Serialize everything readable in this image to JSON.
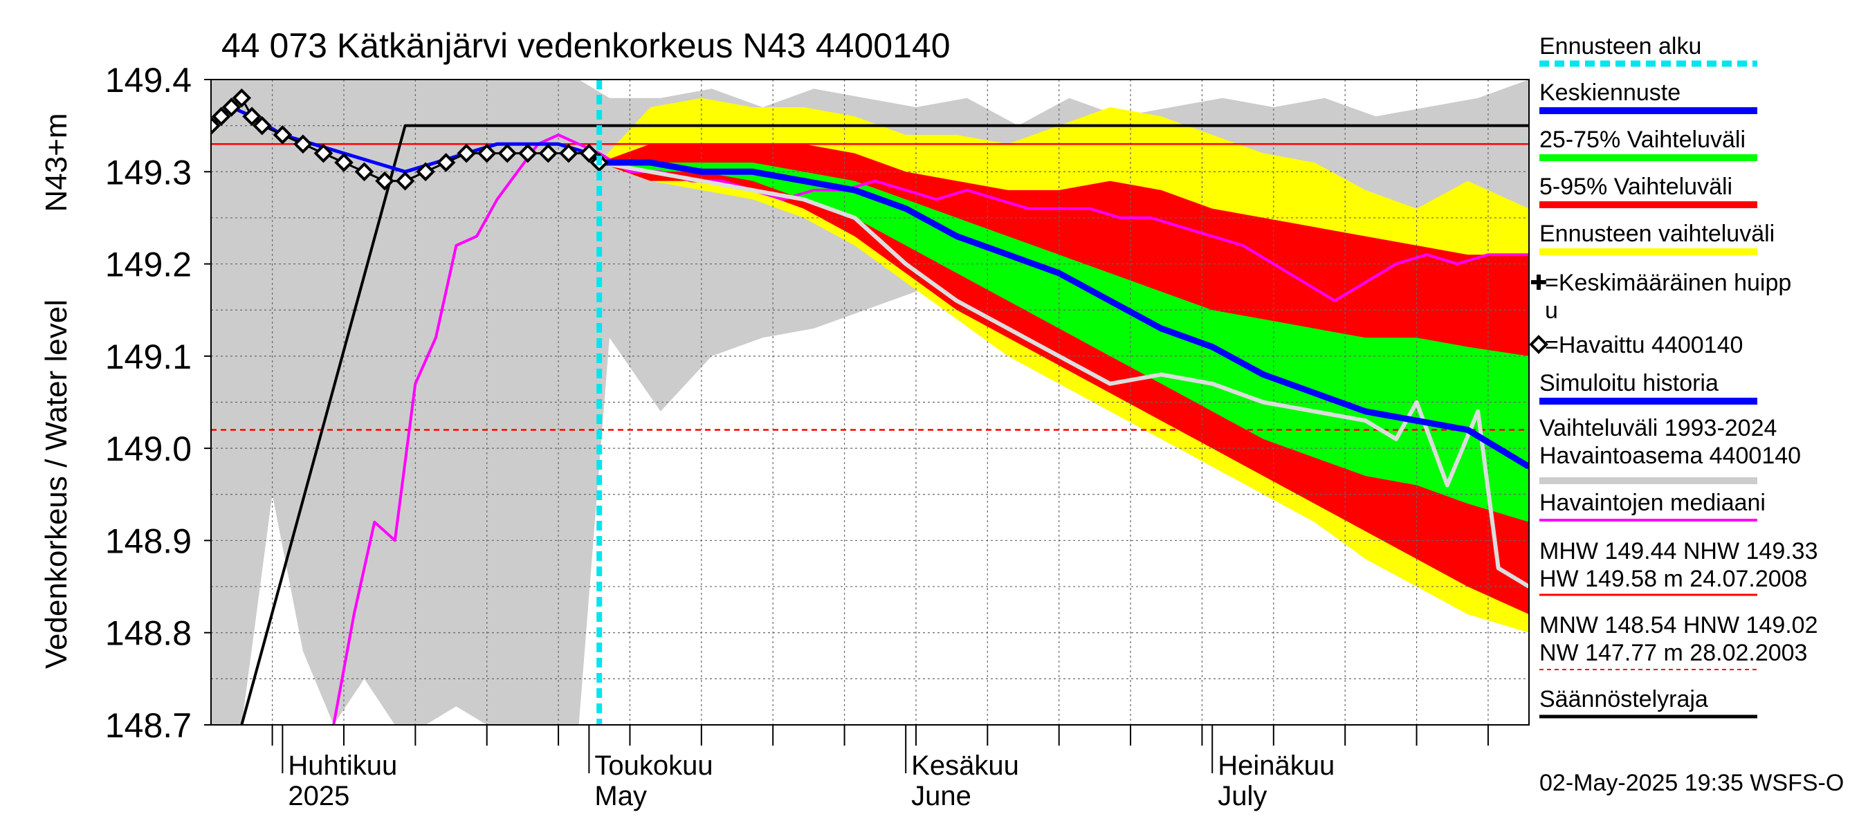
{
  "chart_data": {
    "type": "area",
    "title": "44 073 Kätkänjärvi vedenkorkeus N43 4400140",
    "ylabel": "Vedenkorkeus / Water level",
    "yunit": "N43+m",
    "ylim": [
      148.7,
      149.4
    ],
    "y_ticks": [
      "149.4",
      "149.3",
      "149.2",
      "149.1",
      "149.0",
      "148.9",
      "148.8",
      "148.7"
    ],
    "x_range": [
      "2025-03-25",
      "2025-08-01"
    ],
    "x_month_labels": [
      {
        "date": "2025-04-01",
        "line1": "Huhtikuu",
        "line2": "2025"
      },
      {
        "date": "2025-05-01",
        "line1": "Toukokuu",
        "line2": "May"
      },
      {
        "date": "2025-06-01",
        "line1": "Kesäkuu",
        "line2": "June"
      },
      {
        "date": "2025-07-01",
        "line1": "Heinäkuu",
        "line2": "July"
      }
    ],
    "forecast_start": "2025-05-02",
    "grid": true,
    "legend_placement": "right",
    "timestamp": "02-May-2025 19:35 WSFS-O",
    "reference_lines": [
      {
        "name": "NHW",
        "value": 149.33,
        "style": "solid",
        "color": "#ff0000"
      },
      {
        "name": "HNW",
        "value": 149.02,
        "style": "dashed",
        "color": "#ff0000"
      },
      {
        "name": "Säännöstelyraja",
        "points": [
          [
            "2025-03-28",
            148.7
          ],
          [
            "2025-04-13",
            149.35
          ],
          [
            "2025-08-01",
            149.35
          ]
        ],
        "color": "#000000"
      }
    ],
    "legend": [
      {
        "label": "Ennusteen alku",
        "color": "#00e5ee",
        "style": "dashed"
      },
      {
        "label": "Keskiennuste",
        "color": "#0000ff",
        "style": "line"
      },
      {
        "label": "25-75% Vaihteluväli",
        "color": "#00ff00",
        "style": "line"
      },
      {
        "label": "5-95% Vaihteluväli",
        "color": "#ff0000",
        "style": "line"
      },
      {
        "label": "Ennusteen vaihteluväli",
        "color": "#ffff00",
        "style": "line"
      },
      {
        "label": "=Keskimääräinen huipp u",
        "color": "#000000",
        "style": "plus"
      },
      {
        "label": "=Havaittu 4400140",
        "color": "#000000",
        "style": "diamond"
      },
      {
        "label": "Simuloitu historia",
        "color": "#0000ff",
        "style": "line"
      },
      {
        "label": "Vaihteluväli 1993-2024 Havaintoasema 4400140",
        "color": "#cccccc",
        "style": "line"
      },
      {
        "label": "Havaintojen mediaani",
        "color": "#ff00ff",
        "style": "line"
      },
      {
        "label": "MHW 149.44 NHW 149.33 HW 149.58 m 24.07.2008",
        "color": "#ff0000",
        "style": "thin"
      },
      {
        "label": "MNW 148.54 HNW 149.02 NW 147.77 m 28.02.2003",
        "color": "#ff0000",
        "style": "dashed-thin"
      },
      {
        "label": "Säännöstelyraja",
        "color": "#000000",
        "style": "line"
      }
    ],
    "history_range_1993_2024": {
      "x": [
        "2025-03-25",
        "2025-03-28",
        "2025-03-31",
        "2025-04-03",
        "2025-04-06",
        "2025-04-09",
        "2025-04-12",
        "2025-04-15",
        "2025-04-18",
        "2025-04-21",
        "2025-04-24",
        "2025-04-27",
        "2025-04-30",
        "2025-05-03",
        "2025-05-08",
        "2025-05-13",
        "2025-05-18",
        "2025-05-23",
        "2025-05-28",
        "2025-06-02",
        "2025-06-07",
        "2025-06-12",
        "2025-06-17",
        "2025-06-22",
        "2025-06-27",
        "2025-07-02",
        "2025-07-07",
        "2025-07-12",
        "2025-07-17",
        "2025-07-22",
        "2025-07-27",
        "2025-08-01"
      ],
      "upper": [
        149.4,
        149.4,
        149.4,
        149.4,
        149.4,
        149.4,
        149.4,
        149.4,
        149.4,
        149.4,
        149.4,
        149.4,
        149.4,
        149.38,
        149.38,
        149.39,
        149.37,
        149.39,
        149.38,
        149.37,
        149.38,
        149.35,
        149.38,
        149.36,
        149.37,
        149.38,
        149.37,
        149.38,
        149.36,
        149.37,
        149.38,
        149.4
      ],
      "lower": [
        148.7,
        148.7,
        148.95,
        148.78,
        148.7,
        148.75,
        148.7,
        148.7,
        148.72,
        148.7,
        148.7,
        148.7,
        148.7,
        149.12,
        149.04,
        149.1,
        149.12,
        149.13,
        149.15,
        149.17,
        149.18,
        149.18,
        149.2,
        149.21,
        149.21,
        149.23,
        149.24,
        149.25,
        149.25,
        149.25,
        149.26,
        149.25
      ]
    },
    "forecast_x": [
      "2025-05-02",
      "2025-05-07",
      "2025-05-12",
      "2025-05-17",
      "2025-05-22",
      "2025-05-27",
      "2025-06-01",
      "2025-06-06",
      "2025-06-11",
      "2025-06-16",
      "2025-06-21",
      "2025-06-26",
      "2025-07-01",
      "2025-07-06",
      "2025-07-11",
      "2025-07-16",
      "2025-07-21",
      "2025-07-26",
      "2025-08-01"
    ],
    "forecast_range": {
      "upper": [
        149.31,
        149.37,
        149.38,
        149.37,
        149.37,
        149.36,
        149.34,
        149.34,
        149.33,
        149.35,
        149.37,
        149.36,
        149.34,
        149.32,
        149.31,
        149.28,
        149.26,
        149.29,
        149.26
      ],
      "lower": [
        149.31,
        149.29,
        149.28,
        149.27,
        149.25,
        149.22,
        149.18,
        149.14,
        149.1,
        149.07,
        149.04,
        149.01,
        148.98,
        148.95,
        148.92,
        148.88,
        148.85,
        148.82,
        148.8
      ]
    },
    "range_5_95": {
      "upper": [
        149.31,
        149.33,
        149.33,
        149.33,
        149.33,
        149.32,
        149.3,
        149.29,
        149.28,
        149.28,
        149.29,
        149.28,
        149.26,
        149.25,
        149.24,
        149.23,
        149.22,
        149.21,
        149.21
      ],
      "lower": [
        149.31,
        149.29,
        149.29,
        149.28,
        149.26,
        149.23,
        149.19,
        149.15,
        149.12,
        149.09,
        149.06,
        149.03,
        149.0,
        148.97,
        148.94,
        148.91,
        148.88,
        148.85,
        148.82
      ]
    },
    "range_25_75": {
      "upper": [
        149.31,
        149.31,
        149.31,
        149.31,
        149.3,
        149.29,
        149.27,
        149.25,
        149.23,
        149.21,
        149.19,
        149.17,
        149.15,
        149.14,
        149.13,
        149.12,
        149.12,
        149.11,
        149.1
      ],
      "lower": [
        149.31,
        149.3,
        149.3,
        149.29,
        149.27,
        149.25,
        149.22,
        149.19,
        149.16,
        149.13,
        149.1,
        149.07,
        149.04,
        149.01,
        148.99,
        148.97,
        148.96,
        148.94,
        148.92
      ]
    },
    "mean_forecast": [
      149.31,
      149.31,
      149.3,
      149.3,
      149.29,
      149.28,
      149.26,
      149.23,
      149.21,
      149.19,
      149.16,
      149.13,
      149.11,
      149.08,
      149.06,
      149.04,
      149.03,
      149.02,
      148.98
    ],
    "simulated_history": {
      "x": [
        "2025-03-25",
        "2025-03-27",
        "2025-03-29",
        "2025-04-01",
        "2025-04-04",
        "2025-04-07",
        "2025-04-10",
        "2025-04-13",
        "2025-04-16",
        "2025-04-19",
        "2025-04-22",
        "2025-04-25",
        "2025-04-28",
        "2025-05-01",
        "2025-05-02"
      ],
      "y": [
        149.35,
        149.37,
        149.36,
        149.34,
        149.33,
        149.32,
        149.31,
        149.3,
        149.31,
        149.32,
        149.33,
        149.33,
        149.33,
        149.32,
        149.31
      ]
    },
    "observed": {
      "x": [
        "2025-03-25",
        "2025-03-26",
        "2025-03-27",
        "2025-03-28",
        "2025-03-29",
        "2025-03-30",
        "2025-04-01",
        "2025-04-03",
        "2025-04-05",
        "2025-04-07",
        "2025-04-09",
        "2025-04-11",
        "2025-04-13",
        "2025-04-15",
        "2025-04-17",
        "2025-04-19",
        "2025-04-21",
        "2025-04-23",
        "2025-04-25",
        "2025-04-27",
        "2025-04-29",
        "2025-05-01",
        "2025-05-02"
      ],
      "y": [
        149.35,
        149.36,
        149.37,
        149.38,
        149.36,
        149.35,
        149.34,
        149.33,
        149.32,
        149.31,
        149.3,
        149.29,
        149.29,
        149.3,
        149.31,
        149.32,
        149.32,
        149.32,
        149.32,
        149.32,
        149.32,
        149.32,
        149.31
      ]
    },
    "observed_median": {
      "x": [
        "2025-04-06",
        "2025-04-08",
        "2025-04-10",
        "2025-04-12",
        "2025-04-14",
        "2025-04-16",
        "2025-04-18",
        "2025-04-20",
        "2025-04-22",
        "2025-04-24",
        "2025-04-26",
        "2025-04-28",
        "2025-04-30",
        "2025-05-02",
        "2025-05-05",
        "2025-05-08",
        "2025-05-11",
        "2025-05-14",
        "2025-05-17",
        "2025-05-20",
        "2025-05-23",
        "2025-05-26",
        "2025-05-29",
        "2025-06-01",
        "2025-06-04",
        "2025-06-07",
        "2025-06-10",
        "2025-06-13",
        "2025-06-16",
        "2025-06-19",
        "2025-06-22",
        "2025-06-25",
        "2025-06-28",
        "2025-07-01",
        "2025-07-04",
        "2025-07-07",
        "2025-07-10",
        "2025-07-13",
        "2025-07-16",
        "2025-07-19",
        "2025-07-22",
        "2025-07-25",
        "2025-07-28",
        "2025-08-01"
      ],
      "y": [
        148.7,
        148.82,
        148.92,
        148.9,
        149.07,
        149.12,
        149.22,
        149.23,
        149.27,
        149.3,
        149.33,
        149.34,
        149.33,
        149.32,
        149.3,
        149.3,
        149.29,
        149.29,
        149.28,
        149.27,
        149.28,
        149.28,
        149.29,
        149.28,
        149.27,
        149.28,
        149.27,
        149.26,
        149.26,
        149.26,
        149.25,
        149.25,
        149.24,
        149.23,
        149.22,
        149.2,
        149.18,
        149.16,
        149.18,
        149.2,
        149.21,
        149.2,
        149.21,
        149.21
      ]
    },
    "simulated_history_2025": {
      "x": [
        "2025-05-02",
        "2025-05-07",
        "2025-05-12",
        "2025-05-17",
        "2025-05-22",
        "2025-05-27",
        "2025-06-01",
        "2025-06-06",
        "2025-06-11",
        "2025-06-16",
        "2025-06-21",
        "2025-06-26",
        "2025-07-01",
        "2025-07-06",
        "2025-07-11",
        "2025-07-16",
        "2025-07-19",
        "2025-07-21",
        "2025-07-24",
        "2025-07-27",
        "2025-07-29",
        "2025-08-01"
      ],
      "y": [
        149.31,
        149.3,
        149.29,
        149.28,
        149.27,
        149.25,
        149.2,
        149.16,
        149.13,
        149.1,
        149.07,
        149.08,
        149.07,
        149.05,
        149.04,
        149.03,
        149.01,
        149.05,
        148.96,
        149.04,
        148.87,
        148.85
      ]
    }
  }
}
